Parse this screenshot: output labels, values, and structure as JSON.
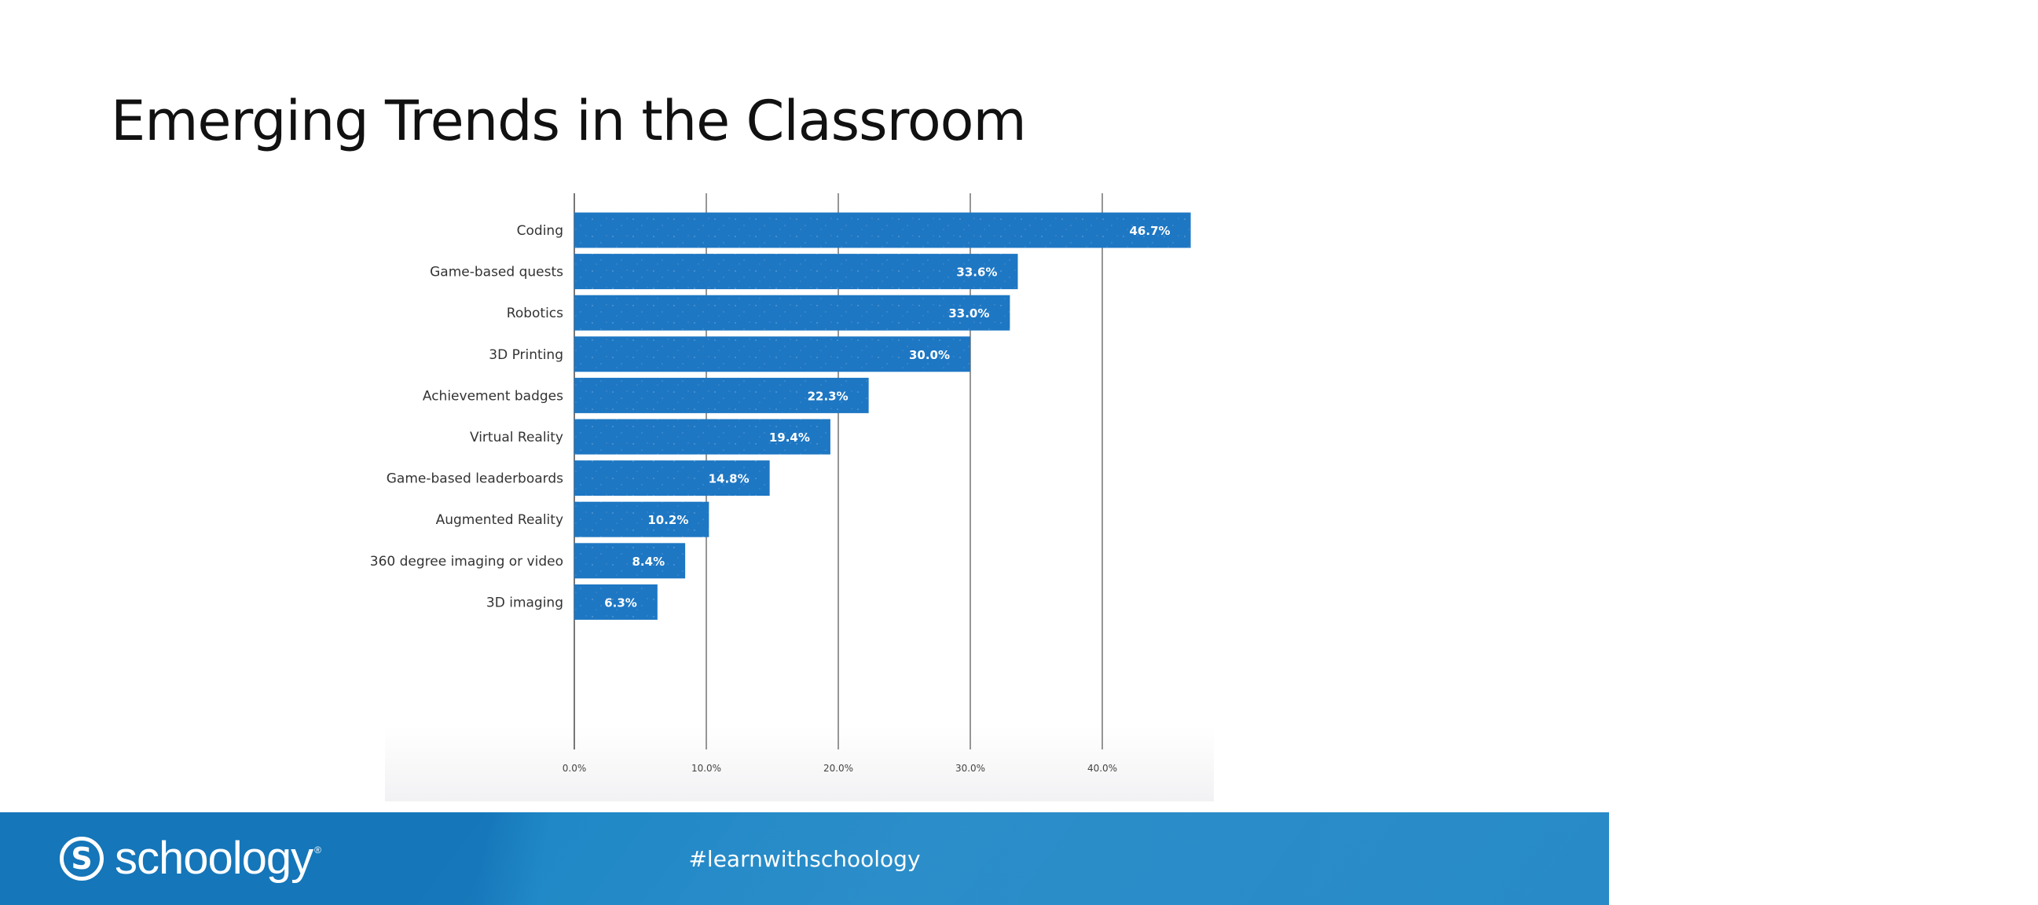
{
  "slide": {
    "title": "Emerging Trends in the Classroom"
  },
  "chart_data": {
    "type": "bar",
    "orientation": "horizontal",
    "categories": [
      "Coding",
      "Game-based quests",
      "Robotics",
      "3D Printing",
      "Achievement badges",
      "Virtual Reality",
      "Game-based leaderboards",
      "Augmented Reality",
      "360 degree imaging or video",
      "3D imaging"
    ],
    "values": [
      46.7,
      33.6,
      33.0,
      30.0,
      22.3,
      19.4,
      14.8,
      10.2,
      8.4,
      6.3
    ],
    "data_labels": [
      "46.7%",
      "33.6%",
      "33.0%",
      "30.0%",
      "22.3%",
      "19.4%",
      "14.8%",
      "10.2%",
      "8.4%",
      "6.3%"
    ],
    "xticks": [
      0,
      10,
      20,
      30,
      40
    ],
    "xtick_labels": [
      "0.0%",
      "10.0%",
      "20.0%",
      "30.0%",
      "40.0%"
    ],
    "xlim": [
      0,
      47.5
    ],
    "grid": "vertical",
    "title": "",
    "xlabel": "",
    "ylabel": "",
    "bar_color": "#1e77c3"
  },
  "footer": {
    "logo_text": "schoology",
    "logo_mark": "S",
    "logo_registered": "®",
    "hashtag": "#learnwithschoology",
    "colors": {
      "footer_blue": "#1a7fc1"
    }
  }
}
